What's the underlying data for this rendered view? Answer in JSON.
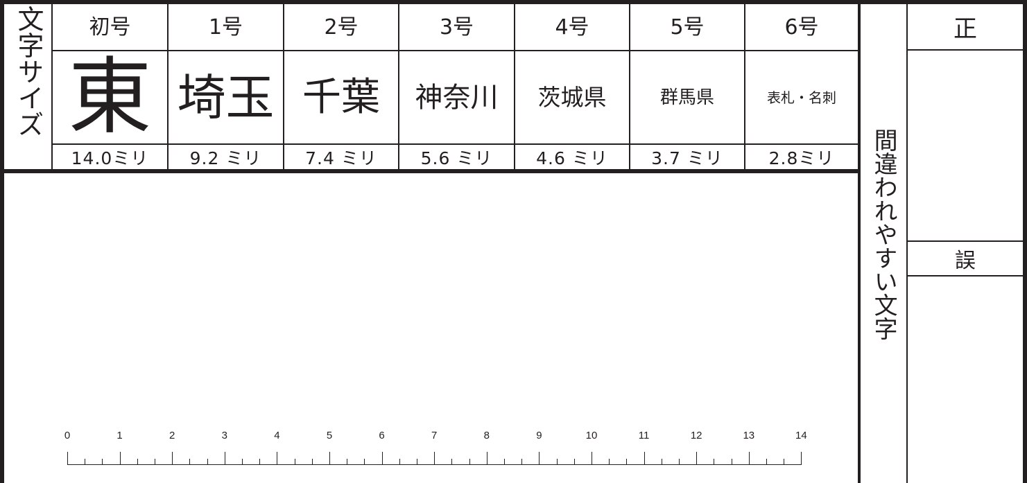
{
  "title_vertical": "文字サイズ",
  "columns": [
    {
      "size_label": "初号",
      "sample": "東",
      "height": "14.0ミリ"
    },
    {
      "size_label": "1号",
      "sample": "埼玉",
      "height": "9.2 ミリ"
    },
    {
      "size_label": "2号",
      "sample": "千葉",
      "height": "7.4 ミリ"
    },
    {
      "size_label": "3号",
      "sample": "神奈川",
      "height": "5.6 ミリ"
    },
    {
      "size_label": "4号",
      "sample": "茨城県",
      "height": "4.6 ミリ"
    },
    {
      "size_label": "5号",
      "sample": "群馬県",
      "height": "3.7 ミリ"
    },
    {
      "size_label": "6号",
      "sample": "表札・名刺",
      "height": "2.8ミリ"
    }
  ],
  "side_label": "間違われやすい文字",
  "correct_label": "正",
  "wrong_label": "誤",
  "ruler": {
    "unit": "cm",
    "labels": [
      "0",
      "1",
      "2",
      "3",
      "4",
      "5",
      "6",
      "7",
      "8",
      "9",
      "10",
      "11",
      "12",
      "13",
      "14"
    ]
  }
}
